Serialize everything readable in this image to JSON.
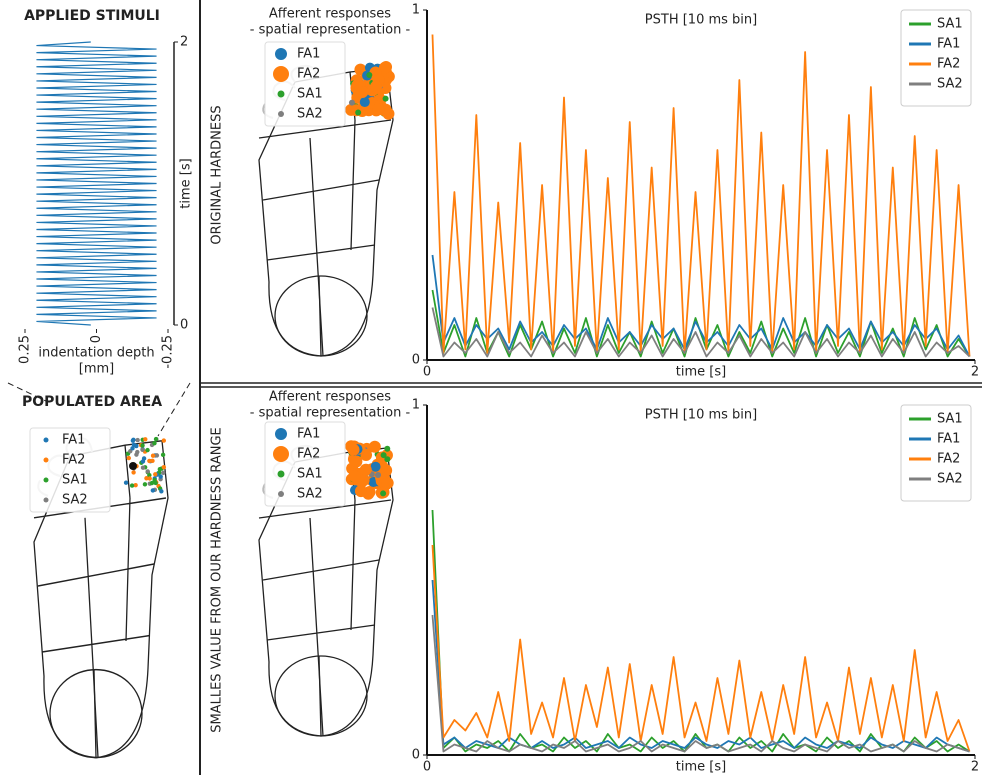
{
  "panels": {
    "stimuli_title": "APPLIED STIMULI",
    "populated_title": "POPULATED AREA",
    "row_labels": [
      "ORIGINAL HARDNESS",
      "SMALLES VALUE FROM OUR HARDNESS RANGE"
    ],
    "foot_title": [
      "Afferent responses",
      "- spatial representation -"
    ],
    "foot_legend": [
      "FA1",
      "FA2",
      "SA1",
      "SA2"
    ]
  },
  "chart_data": [
    {
      "type": "line",
      "xlabel": [
        "indentation depth",
        "[mm]"
      ],
      "ylabel": "time [s]",
      "color": "#1f77b4",
      "xlim": [
        0.25,
        -0.25
      ],
      "xticks": [
        0.25,
        0,
        -0.25
      ],
      "ylim": [
        0,
        2
      ],
      "yticks": [
        0,
        2
      ],
      "x": [
        0.02,
        0.21,
        -0.21,
        0.21,
        -0.21,
        0.21,
        -0.21,
        0.21,
        -0.21,
        0.21,
        -0.21,
        0.21,
        -0.21,
        0.21,
        -0.21,
        0.21,
        -0.21,
        0.21,
        -0.21,
        0.21,
        -0.21,
        0.21,
        -0.21,
        0.21,
        -0.21,
        0.21,
        -0.21,
        0.21,
        -0.21,
        0.21,
        -0.21,
        0.21,
        -0.21,
        0.21,
        -0.21,
        0.21,
        -0.21,
        0.21,
        -0.21,
        0.21,
        -0.21,
        0.21,
        -0.21,
        0.21,
        -0.21,
        0.21,
        -0.21,
        0.21,
        -0.21,
        0.21,
        -0.21,
        0.21,
        -0.21,
        0.21,
        -0.21,
        0.21,
        -0.21,
        0.21,
        -0.21,
        0.21,
        -0.21,
        0.21,
        -0.21,
        0.21,
        -0.21,
        0.21,
        -0.21,
        0.21,
        -0.21,
        0.21,
        -0.21,
        0.21,
        -0.21,
        0.21,
        -0.21,
        0.21,
        -0.21,
        0.21,
        -0.21,
        0.21,
        0.02
      ],
      "values": [
        0,
        0.025,
        0.05,
        0.075,
        0.1,
        0.125,
        0.15,
        0.175,
        0.2,
        0.225,
        0.25,
        0.275,
        0.3,
        0.325,
        0.35,
        0.375,
        0.4,
        0.425,
        0.45,
        0.475,
        0.5,
        0.525,
        0.55,
        0.575,
        0.6,
        0.625,
        0.65,
        0.675,
        0.7,
        0.725,
        0.75,
        0.775,
        0.8,
        0.825,
        0.85,
        0.875,
        0.9,
        0.925,
        0.95,
        0.975,
        1,
        1.025,
        1.05,
        1.075,
        1.1,
        1.125,
        1.15,
        1.175,
        1.2,
        1.225,
        1.25,
        1.275,
        1.3,
        1.325,
        1.35,
        1.375,
        1.4,
        1.425,
        1.45,
        1.475,
        1.5,
        1.525,
        1.55,
        1.575,
        1.6,
        1.625,
        1.65,
        1.675,
        1.7,
        1.725,
        1.75,
        1.775,
        1.8,
        1.825,
        1.85,
        1.875,
        1.9,
        1.925,
        1.95,
        1.975,
        2
      ]
    },
    {
      "type": "line",
      "title": "PSTH [10 ms bin]",
      "xlabel": "time [s]",
      "legend": "upper right",
      "xlim": [
        0,
        2
      ],
      "xticks": [
        0,
        2
      ],
      "ylim": [
        0,
        1
      ],
      "yticks": [
        0,
        1
      ],
      "x": [
        0.02,
        0.06,
        0.1,
        0.14,
        0.18,
        0.22,
        0.26,
        0.3,
        0.34,
        0.38,
        0.42,
        0.46,
        0.5,
        0.54,
        0.58,
        0.62,
        0.66,
        0.7,
        0.74,
        0.78,
        0.82,
        0.86,
        0.9,
        0.94,
        0.98,
        1.02,
        1.06,
        1.1,
        1.14,
        1.18,
        1.22,
        1.26,
        1.3,
        1.34,
        1.38,
        1.42,
        1.46,
        1.5,
        1.54,
        1.58,
        1.62,
        1.66,
        1.7,
        1.74,
        1.78,
        1.82,
        1.86,
        1.9,
        1.94,
        1.98
      ],
      "series": [
        {
          "name": "SA1",
          "color": "#2ca02c",
          "values": [
            0.2,
            0.02,
            0.1,
            0.01,
            0.12,
            0.02,
            0.08,
            0.01,
            0.1,
            0.03,
            0.11,
            0.01,
            0.09,
            0.02,
            0.12,
            0.01,
            0.1,
            0.02,
            0.08,
            0.01,
            0.11,
            0.02,
            0.09,
            0.01,
            0.12,
            0.03,
            0.1,
            0.01,
            0.08,
            0.02,
            0.11,
            0.01,
            0.09,
            0.02,
            0.12,
            0.01,
            0.1,
            0.02,
            0.08,
            0.01,
            0.11,
            0.02,
            0.09,
            0.01,
            0.12,
            0.03,
            0.1,
            0.01,
            0.06,
            0.01
          ]
        },
        {
          "name": "FA1",
          "color": "#1f77b4",
          "values": [
            0.3,
            0.05,
            0.12,
            0.04,
            0.1,
            0.06,
            0.09,
            0.03,
            0.11,
            0.05,
            0.08,
            0.04,
            0.1,
            0.06,
            0.09,
            0.03,
            0.12,
            0.05,
            0.08,
            0.04,
            0.1,
            0.06,
            0.09,
            0.03,
            0.11,
            0.05,
            0.08,
            0.04,
            0.1,
            0.06,
            0.09,
            0.03,
            0.12,
            0.05,
            0.08,
            0.04,
            0.1,
            0.06,
            0.09,
            0.03,
            0.11,
            0.05,
            0.08,
            0.04,
            0.1,
            0.06,
            0.09,
            0.03,
            0.07,
            0.01
          ]
        },
        {
          "name": "FA2",
          "color": "#ff7f0e",
          "values": [
            0.93,
            0.02,
            0.48,
            0.03,
            0.7,
            0.02,
            0.45,
            0.05,
            0.62,
            0.03,
            0.5,
            0.02,
            0.75,
            0.04,
            0.6,
            0.02,
            0.52,
            0.03,
            0.68,
            0.02,
            0.55,
            0.04,
            0.72,
            0.02,
            0.48,
            0.03,
            0.6,
            0.02,
            0.8,
            0.04,
            0.65,
            0.02,
            0.5,
            0.03,
            0.88,
            0.02,
            0.6,
            0.04,
            0.7,
            0.02,
            0.78,
            0.03,
            0.55,
            0.02,
            0.64,
            0.04,
            0.6,
            0.02,
            0.5,
            0.01
          ]
        },
        {
          "name": "SA2",
          "color": "#7f7f7f",
          "values": [
            0.15,
            0.01,
            0.05,
            0.02,
            0.06,
            0.01,
            0.08,
            0.02,
            0.05,
            0.01,
            0.07,
            0.02,
            0.05,
            0.01,
            0.08,
            0.02,
            0.06,
            0.01,
            0.05,
            0.02,
            0.07,
            0.01,
            0.06,
            0.02,
            0.08,
            0.01,
            0.05,
            0.02,
            0.07,
            0.01,
            0.06,
            0.02,
            0.05,
            0.01,
            0.08,
            0.02,
            0.06,
            0.01,
            0.05,
            0.02,
            0.07,
            0.01,
            0.06,
            0.02,
            0.08,
            0.01,
            0.05,
            0.02,
            0.04,
            0.01
          ]
        }
      ]
    },
    {
      "type": "line",
      "title": "PSTH [10 ms bin]",
      "xlabel": "time [s]",
      "legend": "upper right",
      "xlim": [
        0,
        2
      ],
      "xticks": [
        0,
        2
      ],
      "ylim": [
        0,
        1
      ],
      "yticks": [
        0,
        1
      ],
      "x": [
        0.02,
        0.06,
        0.1,
        0.14,
        0.18,
        0.22,
        0.26,
        0.3,
        0.34,
        0.38,
        0.42,
        0.46,
        0.5,
        0.54,
        0.58,
        0.62,
        0.66,
        0.7,
        0.74,
        0.78,
        0.82,
        0.86,
        0.9,
        0.94,
        0.98,
        1.02,
        1.06,
        1.1,
        1.14,
        1.18,
        1.22,
        1.26,
        1.3,
        1.34,
        1.38,
        1.42,
        1.46,
        1.5,
        1.54,
        1.58,
        1.62,
        1.66,
        1.7,
        1.74,
        1.78,
        1.82,
        1.86,
        1.9,
        1.94,
        1.98
      ],
      "series": [
        {
          "name": "SA1",
          "color": "#2ca02c",
          "values": [
            0.7,
            0.02,
            0.05,
            0.01,
            0.03,
            0.02,
            0.04,
            0.01,
            0.06,
            0.02,
            0.03,
            0.01,
            0.05,
            0.02,
            0.04,
            0.01,
            0.06,
            0.02,
            0.03,
            0.01,
            0.05,
            0.02,
            0.04,
            0.01,
            0.06,
            0.02,
            0.03,
            0.01,
            0.05,
            0.02,
            0.04,
            0.01,
            0.06,
            0.02,
            0.03,
            0.01,
            0.05,
            0.02,
            0.04,
            0.01,
            0.06,
            0.02,
            0.03,
            0.01,
            0.05,
            0.02,
            0.04,
            0.01,
            0.03,
            0.01
          ]
        },
        {
          "name": "FA1",
          "color": "#1f77b4",
          "values": [
            0.5,
            0.03,
            0.05,
            0.02,
            0.04,
            0.03,
            0.02,
            0.05,
            0.03,
            0.02,
            0.04,
            0.02,
            0.03,
            0.05,
            0.02,
            0.03,
            0.04,
            0.02,
            0.05,
            0.03,
            0.02,
            0.04,
            0.03,
            0.02,
            0.05,
            0.03,
            0.02,
            0.04,
            0.03,
            0.05,
            0.02,
            0.03,
            0.04,
            0.02,
            0.05,
            0.03,
            0.02,
            0.04,
            0.03,
            0.02,
            0.05,
            0.03,
            0.02,
            0.04,
            0.03,
            0.02,
            0.05,
            0.03,
            0.02,
            0.01
          ]
        },
        {
          "name": "FA2",
          "color": "#ff7f0e",
          "values": [
            0.6,
            0.05,
            0.1,
            0.07,
            0.12,
            0.05,
            0.18,
            0.04,
            0.33,
            0.06,
            0.15,
            0.05,
            0.22,
            0.04,
            0.2,
            0.08,
            0.25,
            0.05,
            0.26,
            0.04,
            0.2,
            0.06,
            0.28,
            0.05,
            0.15,
            0.04,
            0.22,
            0.06,
            0.27,
            0.05,
            0.18,
            0.04,
            0.2,
            0.06,
            0.28,
            0.05,
            0.15,
            0.04,
            0.25,
            0.06,
            0.22,
            0.05,
            0.2,
            0.04,
            0.3,
            0.05,
            0.18,
            0.04,
            0.1,
            0.01
          ]
        },
        {
          "name": "SA2",
          "color": "#7f7f7f",
          "values": [
            0.4,
            0.01,
            0.03,
            0.02,
            0.01,
            0.04,
            0.02,
            0.01,
            0.03,
            0.02,
            0.01,
            0.03,
            0.02,
            0.04,
            0.01,
            0.02,
            0.03,
            0.01,
            0.02,
            0.04,
            0.01,
            0.03,
            0.02,
            0.01,
            0.04,
            0.02,
            0.03,
            0.01,
            0.02,
            0.03,
            0.01,
            0.04,
            0.02,
            0.01,
            0.03,
            0.02,
            0.01,
            0.04,
            0.02,
            0.03,
            0.01,
            0.02,
            0.03,
            0.01,
            0.04,
            0.02,
            0.01,
            0.03,
            0.02,
            0.01
          ]
        }
      ]
    }
  ]
}
